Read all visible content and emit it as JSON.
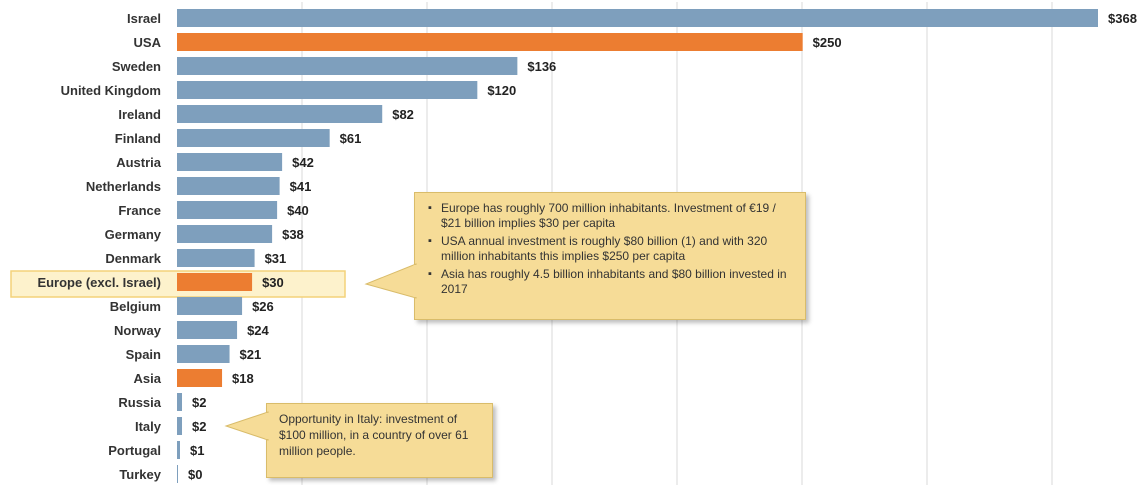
{
  "chart_data": {
    "type": "bar",
    "orientation": "horizontal",
    "categories": [
      "Israel",
      "USA",
      "Sweden",
      "United Kingdom",
      "Ireland",
      "Finland",
      "Austria",
      "Netherlands",
      "France",
      "Germany",
      "Denmark",
      "Europe (excl. Israel)",
      "Belgium",
      "Norway",
      "Spain",
      "Asia",
      "Russia",
      "Italy",
      "Portugal",
      "Turkey"
    ],
    "values": [
      368,
      250,
      136,
      120,
      82,
      61,
      42,
      41,
      40,
      38,
      31,
      30,
      26,
      24,
      21,
      18,
      2,
      2,
      1,
      0
    ],
    "value_labels": [
      "$368",
      "$250",
      "$136",
      "$120",
      "$82",
      "$61",
      "$42",
      "$41",
      "$40",
      "$38",
      "$31",
      "$30",
      "$26",
      "$24",
      "$21",
      "$18",
      "$2",
      "$2",
      "$1",
      "$0"
    ],
    "highlighted": [
      "USA",
      "Europe (excl. Israel)",
      "Asia"
    ],
    "highlight_box": "Europe (excl. Israel)",
    "xlim": [
      0,
      380
    ],
    "grid": true,
    "title": "",
    "xlabel": "",
    "ylabel": "",
    "colors": {
      "bar": "#7e9fbd",
      "highlight": "#ec7d31",
      "highlight_box": "#fdf2cc",
      "highlight_box_border": "#f3d27a",
      "grid": "#d9d9d9"
    }
  },
  "callouts": {
    "europe": {
      "bullets": [
        "Europe has roughly 700 million inhabitants. Investment of €19 / $21 billion implies $30 per capita",
        "USA annual investment is roughly $80 billion (1) and with 320 million inhabitants this implies $250 per capita",
        "Asia has roughly 4.5 billion inhabitants and $80 billion invested in 2017"
      ]
    },
    "italy": {
      "text": "Opportunity in Italy: investment of $100 million, in a country of over 61 million people."
    }
  }
}
